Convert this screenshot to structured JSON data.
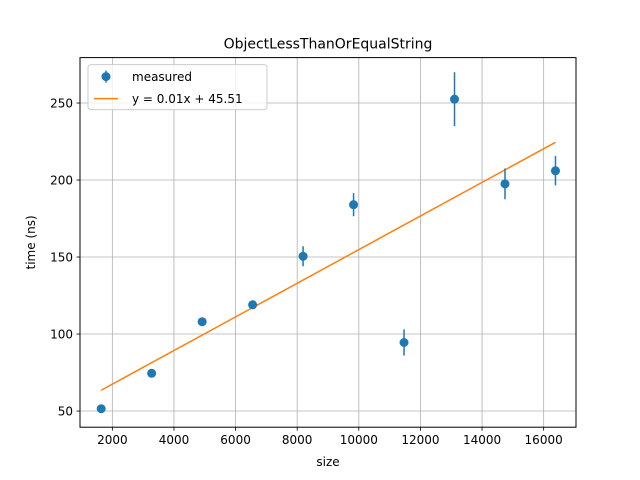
{
  "chart_data": {
    "type": "scatter",
    "title": "ObjectLessThanOrEqualString",
    "xlabel": "size",
    "ylabel": "time (ns)",
    "xlim": [
      950,
      17050
    ],
    "ylim": [
      39.5,
      279.5
    ],
    "xticks": [
      2000,
      4000,
      6000,
      8000,
      10000,
      12000,
      14000,
      16000
    ],
    "yticks": [
      50,
      100,
      150,
      200,
      250
    ],
    "grid": true,
    "legend_position": "top-left",
    "series": [
      {
        "name": "measured",
        "kind": "errorbar",
        "color": "#1f77b4",
        "x": [
          1638,
          3276,
          4915,
          6553,
          8192,
          9830,
          11468,
          13107,
          14745,
          16384
        ],
        "y": [
          51.5,
          74.5,
          108,
          119,
          150.5,
          184,
          94.5,
          252.5,
          197.5,
          206
        ],
        "yerr": [
          2,
          2,
          1.5,
          2.5,
          6.5,
          7.5,
          8.5,
          17.5,
          10,
          9.5
        ]
      },
      {
        "name": "y = 0.01x + 45.51",
        "kind": "line",
        "color": "#ff7f0e",
        "x": [
          1638,
          16384
        ],
        "y": [
          63.5,
          224.5
        ]
      }
    ]
  }
}
